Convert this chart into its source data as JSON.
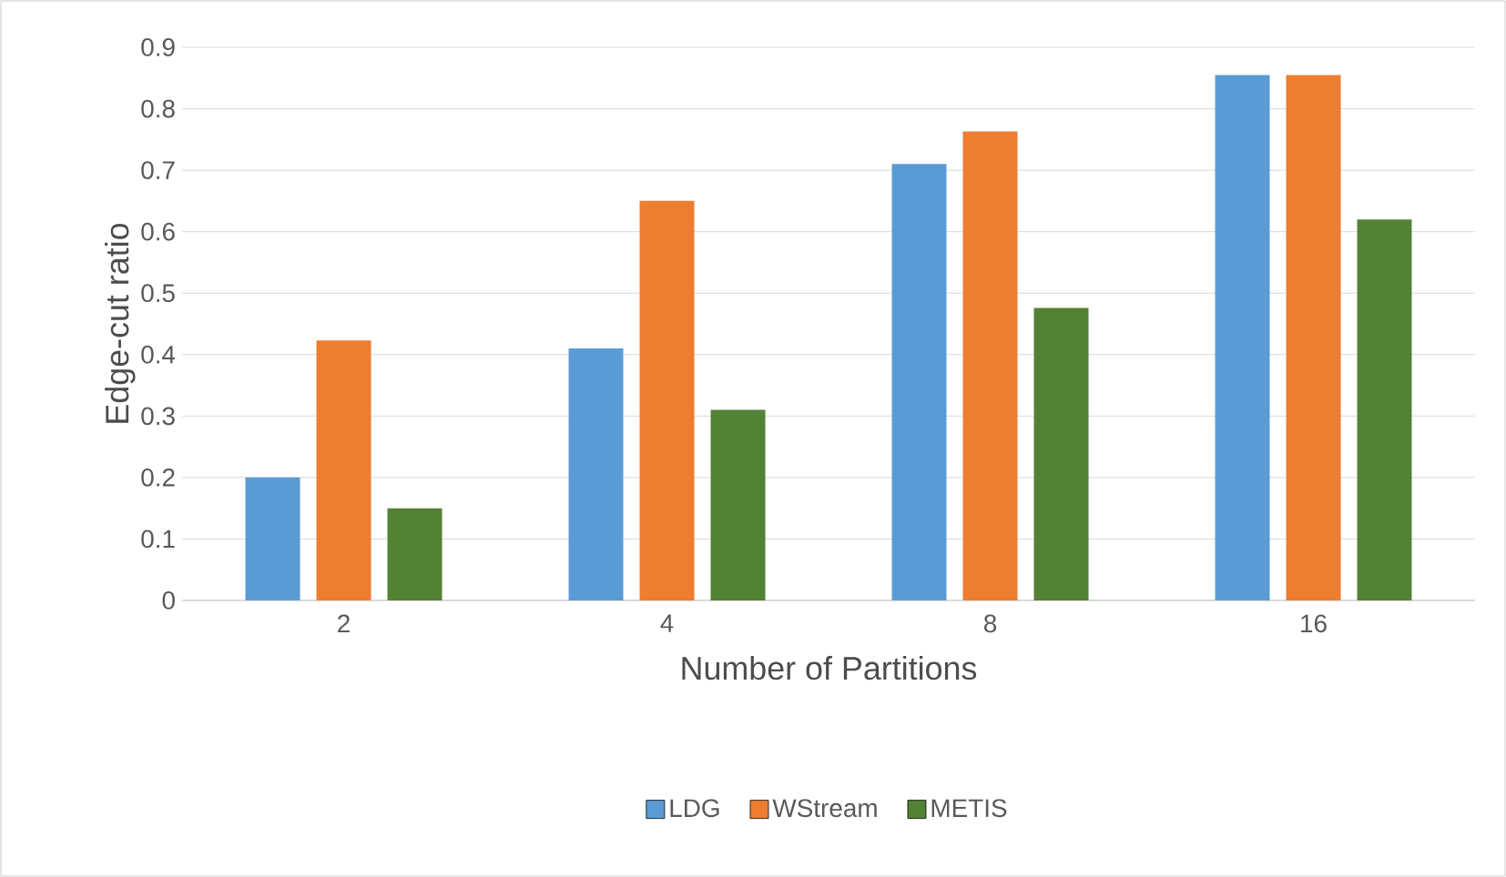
{
  "chart_data": {
    "type": "bar",
    "xlabel": "Number of Partitions",
    "ylabel": "Edge-cut ratio",
    "categories": [
      "2",
      "4",
      "8",
      "16"
    ],
    "series": [
      {
        "name": "LDG",
        "color": "#5b9bd5",
        "values": [
          0.2,
          0.41,
          0.71,
          0.855
        ]
      },
      {
        "name": "WStream",
        "color": "#ed7d31",
        "values": [
          0.423,
          0.65,
          0.763,
          0.855
        ]
      },
      {
        "name": "METIS",
        "color": "#548235",
        "values": [
          0.15,
          0.31,
          0.476,
          0.62
        ]
      }
    ],
    "ylim": [
      0,
      0.9
    ],
    "yticks": [
      0,
      0.1,
      0.2,
      0.3,
      0.4,
      0.5,
      0.6,
      0.7,
      0.8,
      0.9
    ],
    "grid": "y",
    "legend": "bottom"
  }
}
